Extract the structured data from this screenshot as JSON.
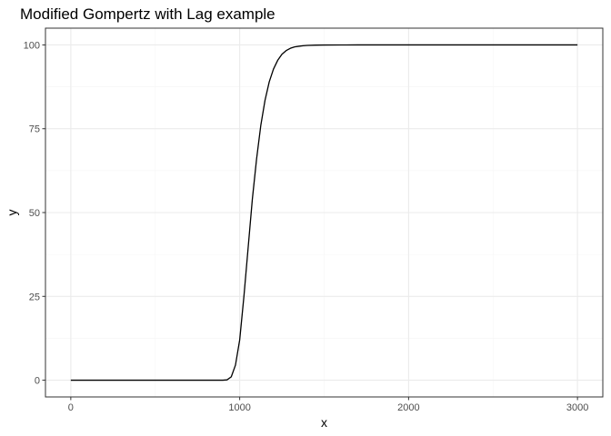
{
  "chart_data": {
    "type": "line",
    "title": "Modified Gompertz with Lag example",
    "xlabel": "x",
    "ylabel": "y",
    "xlim": [
      -150,
      3150
    ],
    "ylim": [
      -5,
      105
    ],
    "x_ticks": [
      0,
      1000,
      2000,
      3000
    ],
    "x_minor_ticks": [
      500,
      1500,
      2500
    ],
    "y_ticks": [
      0,
      25,
      50,
      75,
      100
    ],
    "y_minor_ticks": [
      12.5,
      37.5,
      62.5,
      87.5
    ],
    "grid": true,
    "legend": "none",
    "colors": {
      "line": "#000000",
      "panel_border": "#333333",
      "grid_major": "#ebebeb",
      "grid_minor": "#f5f5f5",
      "tick_label": "#4d4d4d"
    },
    "series": [
      {
        "x": [
          0,
          100,
          200,
          300,
          400,
          500,
          600,
          700,
          800,
          900,
          925,
          950,
          975,
          1000,
          1025,
          1050,
          1075,
          1100,
          1125,
          1150,
          1175,
          1200,
          1225,
          1250,
          1275,
          1300,
          1325,
          1350,
          1375,
          1400,
          1450,
          1500,
          1600,
          1700,
          1800,
          2000,
          2250,
          2500,
          2750,
          3000
        ],
        "y": [
          0,
          0,
          0,
          0,
          0,
          0,
          0,
          0,
          0,
          0,
          0.1,
          1,
          4.5,
          12,
          25,
          39.5,
          54,
          66,
          76,
          83.5,
          89,
          92.8,
          95.4,
          97.2,
          98.3,
          99,
          99.4,
          99.6,
          99.75,
          99.85,
          99.93,
          99.97,
          99.99,
          100,
          100,
          100,
          100,
          100,
          100,
          100
        ]
      }
    ]
  }
}
